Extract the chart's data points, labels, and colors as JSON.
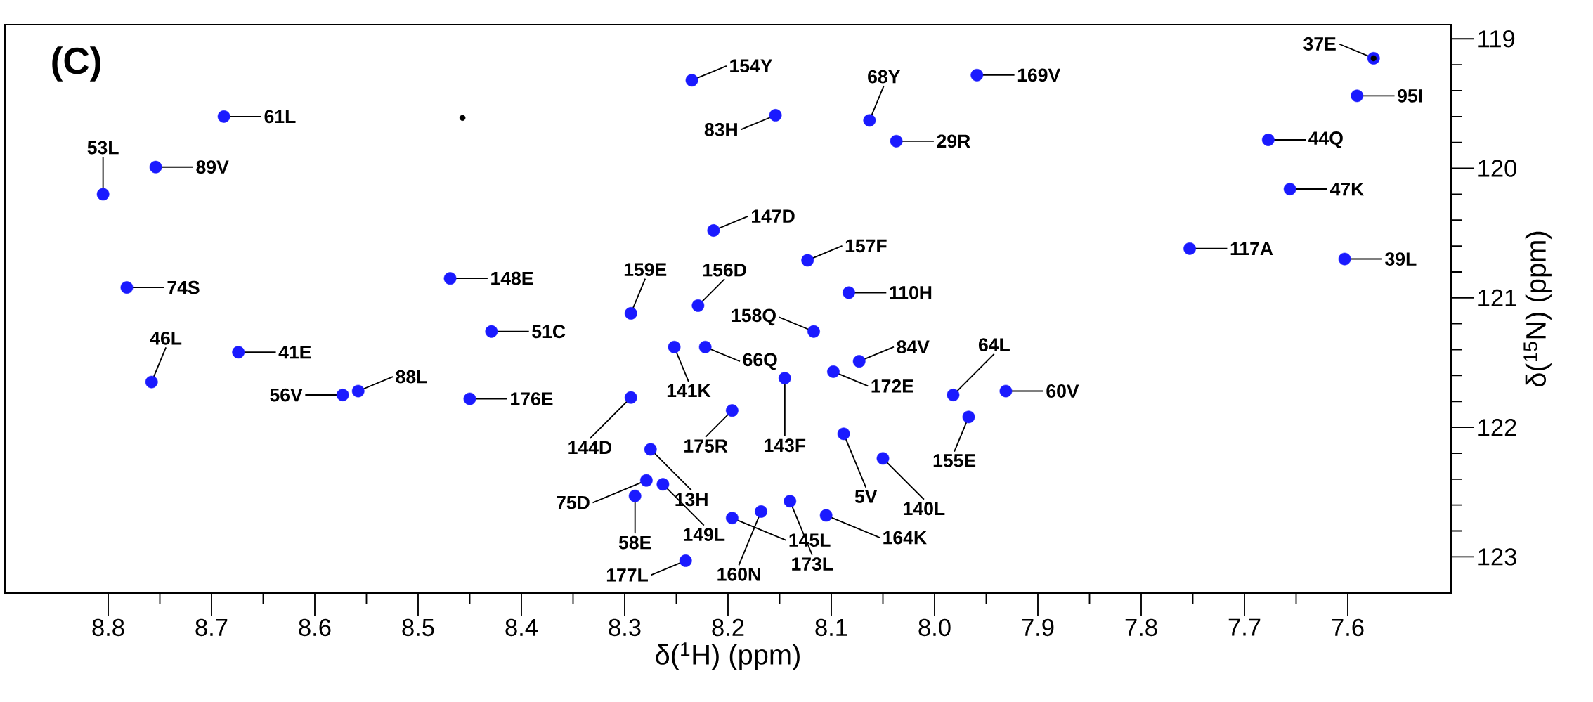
{
  "chart_data": {
    "type": "scatter",
    "xlabel": "δ($^{1}$H) (ppm)",
    "ylabel": "δ($^{15}$N) (ppm)",
    "grid": false,
    "xlim": [
      8.9,
      7.5
    ],
    "ylim": [
      123.28,
      118.89
    ],
    "xticks": [
      8.8,
      8.7,
      8.6,
      8.5,
      8.4,
      8.3,
      8.2,
      8.1,
      {
        "value": 8,
        "label": "8.0"
      },
      7.9,
      7.8,
      7.7,
      7.6
    ],
    "yticks": [
      119,
      120,
      121,
      122,
      123
    ],
    "series": [
      {
        "color": "#1a1aff",
        "x": [
          8.688,
          8.754,
          8.805,
          8.782,
          8.674,
          8.758,
          8.558,
          8.573,
          8.45,
          8.469,
          8.429,
          8.235,
          7.959,
          8.154,
          8.063,
          8.037,
          8.214,
          8.123,
          8.294,
          8.229,
          8.083,
          8.117,
          8.252,
          8.222,
          8.073,
          8.145,
          8.098,
          7.982,
          7.931,
          7.967,
          8.294,
          8.196,
          8.088,
          8.05,
          8.275,
          8.279,
          8.29,
          8.263,
          8.196,
          8.168,
          8.14,
          8.105,
          8.241,
          7.575,
          7.591,
          7.677,
          7.656,
          7.753,
          7.603
        ],
        "values": [
          119.6,
          119.99,
          120.2,
          120.92,
          121.42,
          121.65,
          121.72,
          121.75,
          121.78,
          120.85,
          121.26,
          119.32,
          119.28,
          119.59,
          119.63,
          119.79,
          120.48,
          120.71,
          121.12,
          121.06,
          120.96,
          121.26,
          121.38,
          121.38,
          121.49,
          121.62,
          121.57,
          121.75,
          121.72,
          121.92,
          121.77,
          121.87,
          122.05,
          122.24,
          122.17,
          122.41,
          122.53,
          122.44,
          122.7,
          122.65,
          122.57,
          122.68,
          123.03,
          119.15,
          119.44,
          119.78,
          120.16,
          120.62,
          120.7
        ]
      },
      {
        "color": "#000000",
        "x": [
          8.457,
          7.575
        ],
        "values": [
          119.61,
          119.15
        ]
      }
    ],
    "annotations": [
      "(C)",
      {
        "text": "61L",
        "x": 8.688,
        "y": 119.6
      },
      {
        "text": "89V",
        "x": 8.754,
        "y": 119.99
      },
      {
        "text": "53L",
        "x": 8.805,
        "y": 120.2
      },
      {
        "text": "74S",
        "x": 8.782,
        "y": 120.92
      },
      {
        "text": "41E",
        "x": 8.674,
        "y": 121.42
      },
      {
        "text": "46L",
        "x": 8.758,
        "y": 121.65
      },
      {
        "text": "88L",
        "x": 8.558,
        "y": 121.72
      },
      {
        "text": "56V",
        "x": 8.573,
        "y": 121.75
      },
      {
        "text": "176E",
        "x": 8.45,
        "y": 121.78
      },
      {
        "text": "148E",
        "x": 8.469,
        "y": 120.85
      },
      {
        "text": "51C",
        "x": 8.429,
        "y": 121.26
      },
      {
        "text": "154Y",
        "x": 8.235,
        "y": 119.32
      },
      {
        "text": "169V",
        "x": 7.959,
        "y": 119.28
      },
      {
        "text": "83H",
        "x": 8.154,
        "y": 119.59
      },
      {
        "text": "68Y",
        "x": 8.063,
        "y": 119.63
      },
      {
        "text": "29R",
        "x": 8.037,
        "y": 119.79
      },
      {
        "text": "147D",
        "x": 8.214,
        "y": 120.48
      },
      {
        "text": "157F",
        "x": 8.123,
        "y": 120.71
      },
      {
        "text": "159E",
        "x": 8.294,
        "y": 121.12
      },
      {
        "text": "156D",
        "x": 8.229,
        "y": 121.06
      },
      {
        "text": "110H",
        "x": 8.083,
        "y": 120.96
      },
      {
        "text": "158Q",
        "x": 8.117,
        "y": 121.26
      },
      {
        "text": "141K",
        "x": 8.252,
        "y": 121.38
      },
      {
        "text": "66Q",
        "x": 8.222,
        "y": 121.38
      },
      {
        "text": "84V",
        "x": 8.073,
        "y": 121.49
      },
      {
        "text": "143F",
        "x": 8.145,
        "y": 121.62
      },
      {
        "text": "172E",
        "x": 8.098,
        "y": 121.57
      },
      {
        "text": "64L",
        "x": 7.982,
        "y": 121.75
      },
      {
        "text": "60V",
        "x": 7.931,
        "y": 121.72
      },
      {
        "text": "155E",
        "x": 7.967,
        "y": 121.92
      },
      {
        "text": "144D",
        "x": 8.294,
        "y": 121.77
      },
      {
        "text": "175R",
        "x": 8.196,
        "y": 121.87
      },
      {
        "text": "5V",
        "x": 8.088,
        "y": 122.05
      },
      {
        "text": "140L",
        "x": 8.05,
        "y": 122.24
      },
      {
        "text": "13H",
        "x": 8.275,
        "y": 122.17
      },
      {
        "text": "75D",
        "x": 8.279,
        "y": 122.41
      },
      {
        "text": "58E",
        "x": 8.29,
        "y": 122.53
      },
      {
        "text": "149L",
        "x": 8.263,
        "y": 122.44
      },
      {
        "text": "145L",
        "x": 8.196,
        "y": 122.7
      },
      {
        "text": "160N",
        "x": 8.168,
        "y": 122.65
      },
      {
        "text": "173L",
        "x": 8.14,
        "y": 122.57
      },
      {
        "text": "164K",
        "x": 8.105,
        "y": 122.68
      },
      {
        "text": "177L",
        "x": 8.241,
        "y": 123.03
      },
      {
        "text": "37E",
        "x": 7.575,
        "y": 119.15
      },
      {
        "text": "95I",
        "x": 7.591,
        "y": 119.44
      },
      {
        "text": "44Q",
        "x": 7.677,
        "y": 119.78
      },
      {
        "text": "47K",
        "x": 7.656,
        "y": 120.16
      },
      {
        "text": "117A",
        "x": 7.753,
        "y": 120.62
      },
      {
        "text": "39L",
        "x": 7.603,
        "y": 120.7
      }
    ]
  }
}
